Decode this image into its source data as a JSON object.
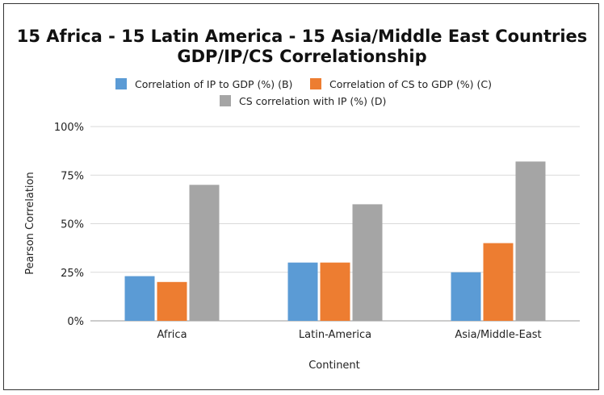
{
  "chart_data": {
    "type": "bar",
    "title": "15 Africa - 15 Latin America - 15 Asia/Middle East Countries",
    "subtitle": "GDP/IP/CS Correlationship",
    "xlabel": "Continent",
    "ylabel": "Pearson Correlation",
    "categories": [
      "Africa",
      "Latin-America",
      "Asia/Middle-East"
    ],
    "series": [
      {
        "name": "Correlation of IP to GDP (%) (B)",
        "values": [
          23,
          30,
          25
        ],
        "color": "#5b9bd5"
      },
      {
        "name": "Correlation of CS to GDP (%) (C)",
        "values": [
          20,
          30,
          40
        ],
        "color": "#ed7d31"
      },
      {
        "name": "CS correlation with IP (%) (D)",
        "values": [
          70,
          60,
          82
        ],
        "color": "#a5a5a5"
      }
    ],
    "ylim": [
      0,
      100
    ],
    "yticks": [
      0,
      25,
      50,
      75,
      100
    ],
    "ytick_labels": [
      "0%",
      "25%",
      "50%",
      "75%",
      "100%"
    ],
    "grid": true,
    "legend_position": "top"
  }
}
